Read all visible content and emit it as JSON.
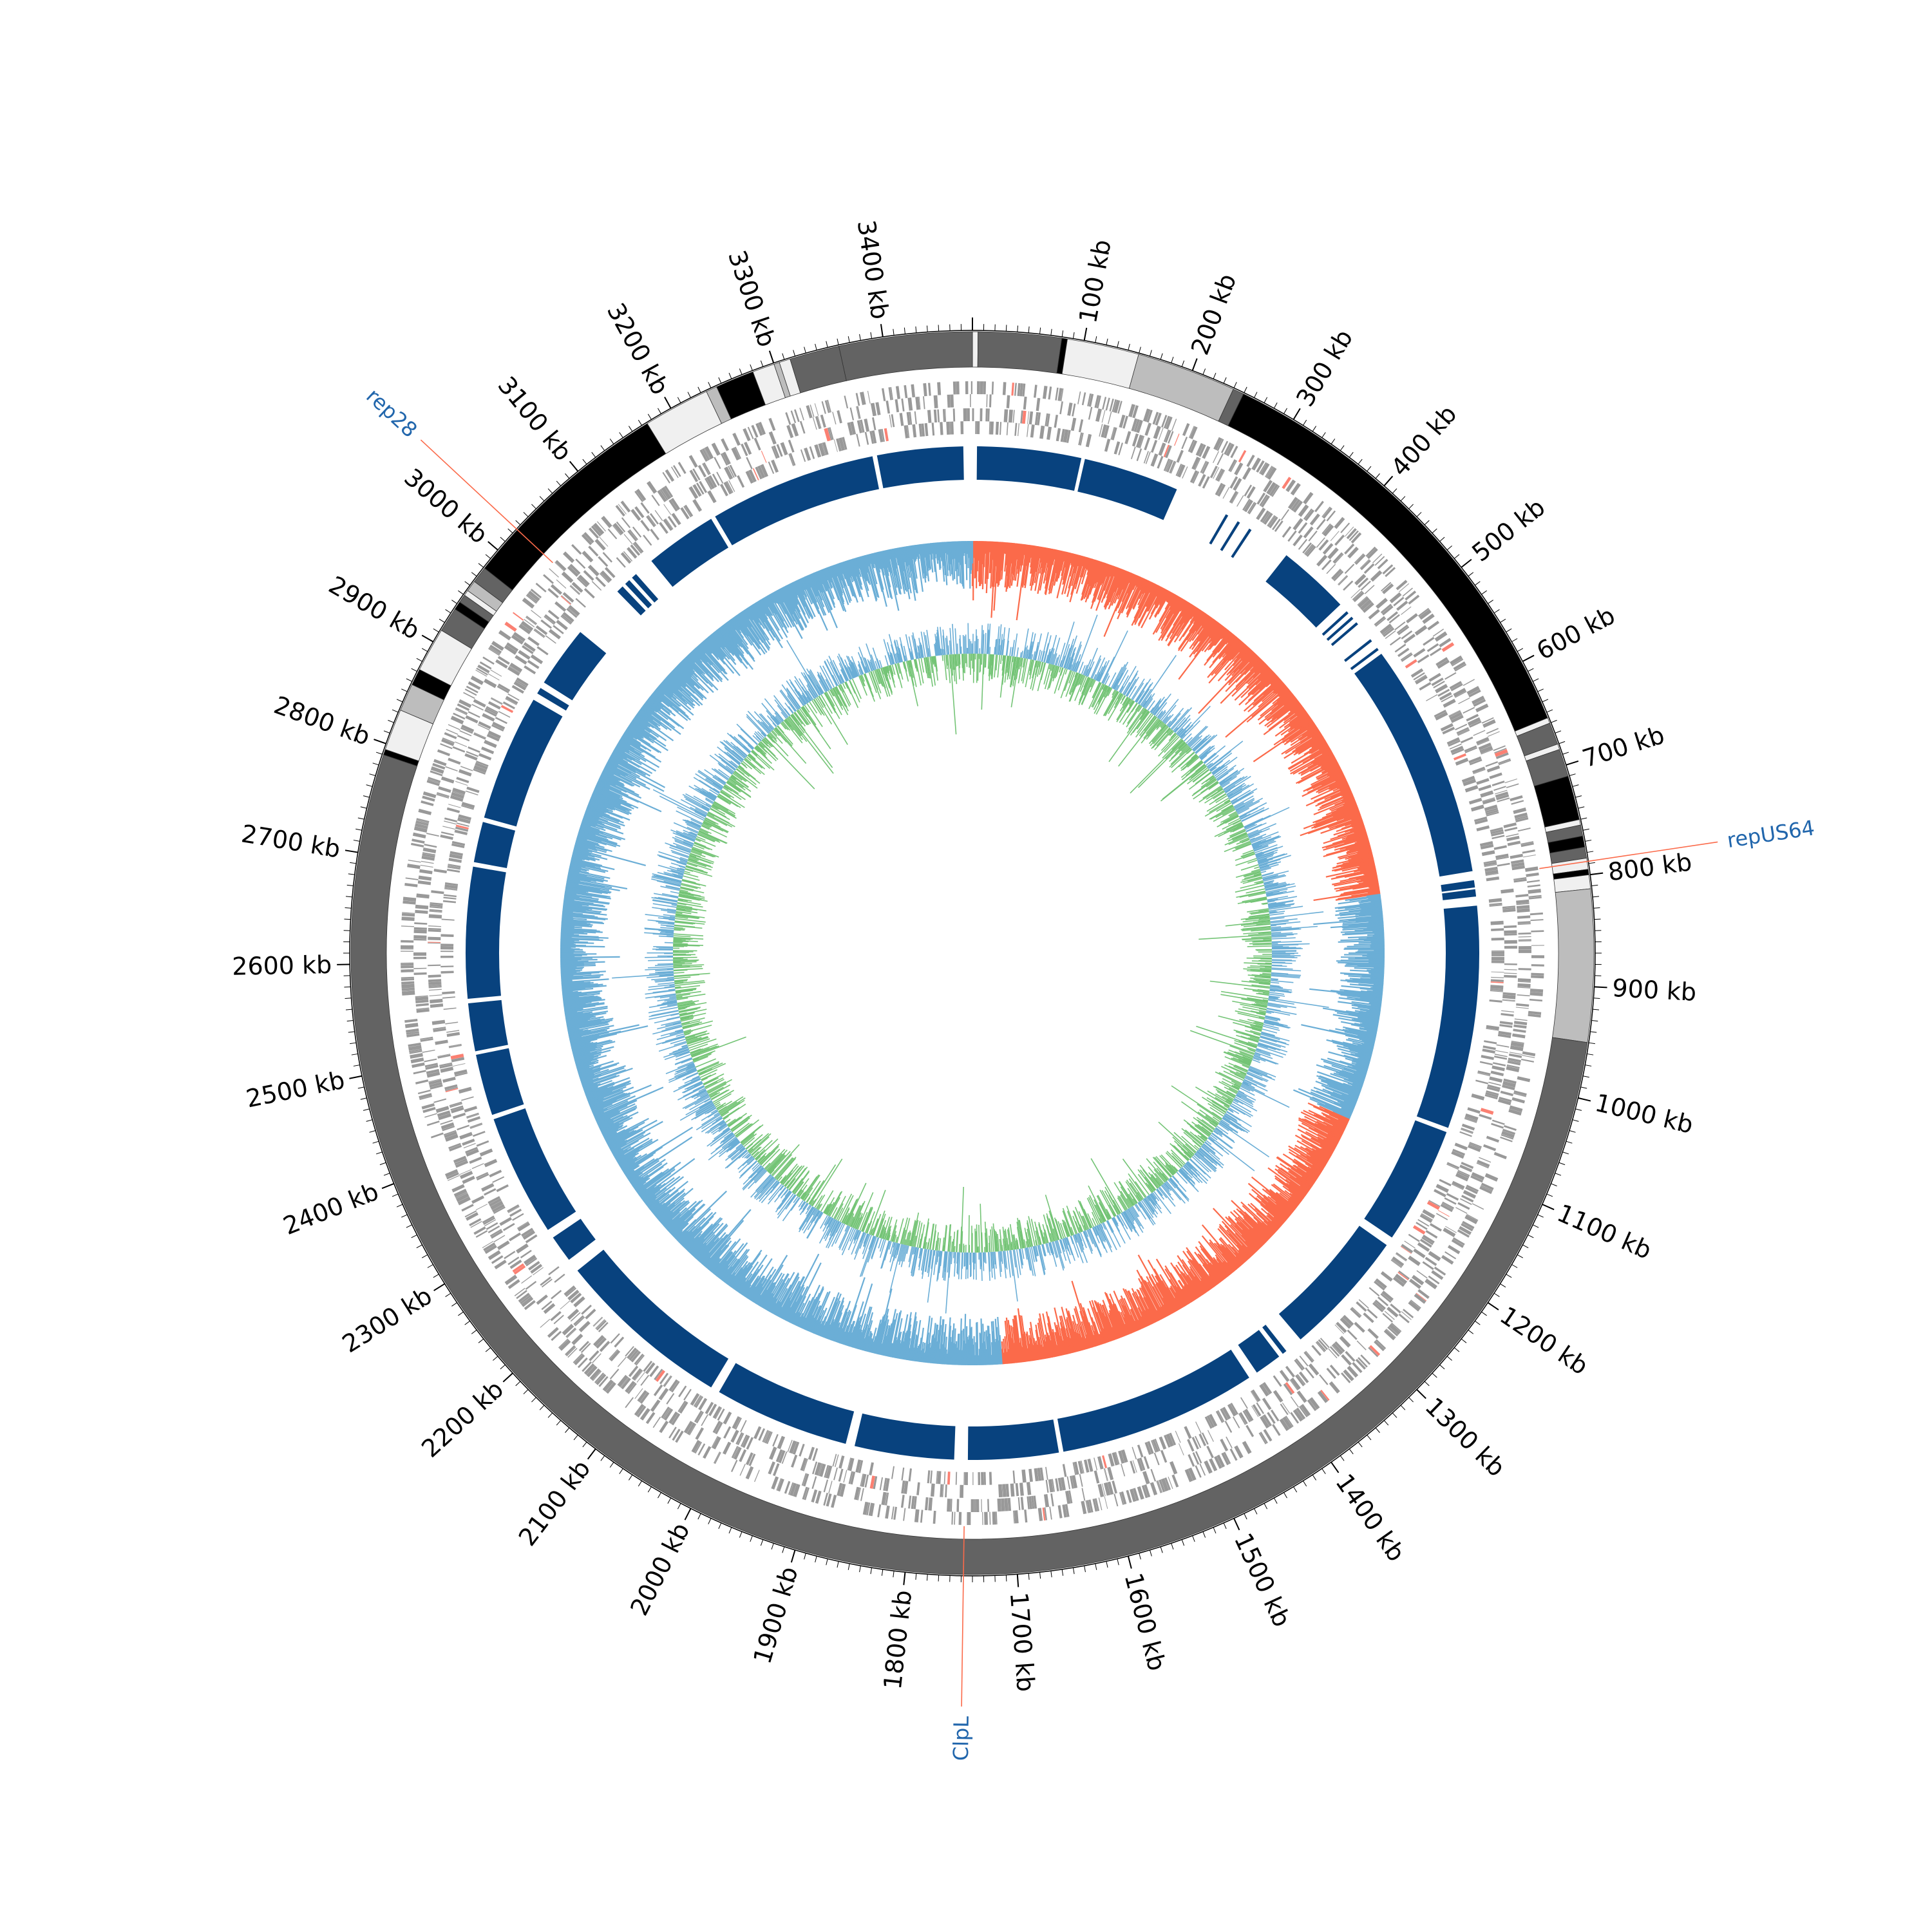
{
  "genome": {
    "length_kb": 3480,
    "tick_unit": "kb",
    "tick_labels": [
      "100 kb",
      "200 kb",
      "300 kb",
      "400 kb",
      "500 kb",
      "600 kb",
      "700 kb",
      "800 kb",
      "900 kb",
      "1000 kb",
      "1100 kb",
      "1200 kb",
      "1300 kb",
      "1400 kb",
      "1500 kb",
      "1600 kb",
      "1700 kb",
      "1800 kb",
      "1900 kb",
      "2000 kb",
      "2100 kb",
      "2200 kb",
      "2300 kb",
      "2400 kb",
      "2500 kb",
      "2600 kb",
      "2700 kb",
      "2800 kb",
      "2900 kb",
      "3000 kb",
      "3100 kb",
      "3200 kb",
      "3300 kb",
      "3400 kb"
    ]
  },
  "segments": [
    {
      "start": 0,
      "end": 10,
      "shade": "#f0f0f0"
    },
    {
      "start": 10,
      "end": 160,
      "shade": "#636363"
    },
    {
      "start": 160,
      "end": 170,
      "shade": "#000000"
    },
    {
      "start": 170,
      "end": 300,
      "shade": "#f0f0f0"
    },
    {
      "start": 300,
      "end": 480,
      "shade": "#bdbdbd"
    },
    {
      "start": 480,
      "end": 500,
      "shade": "#636363"
    },
    {
      "start": 500,
      "end": 1310,
      "shade": "#000000"
    },
    {
      "start": 1310,
      "end": 1320,
      "shade": "#f0f0f0"
    },
    {
      "start": 1320,
      "end": 1360,
      "shade": "#636363"
    },
    {
      "start": 1360,
      "end": 1370,
      "shade": "#f0f0f0"
    },
    {
      "start": 1370,
      "end": 1420,
      "shade": "#636363"
    },
    {
      "start": 1420,
      "end": 1500,
      "shade": "#000000"
    },
    {
      "start": 1500,
      "end": 1510,
      "shade": "#f0f0f0"
    },
    {
      "start": 1510,
      "end": 1530,
      "shade": "#636363"
    },
    {
      "start": 1530,
      "end": 1550,
      "shade": "#000000"
    },
    {
      "start": 1550,
      "end": 1570,
      "shade": "#636363"
    },
    {
      "start": 1570,
      "end": 1590,
      "shade": "#f0f0f0"
    },
    {
      "start": 1590,
      "end": 1600,
      "shade": "#000000"
    },
    {
      "start": 1600,
      "end": 1625,
      "shade": "#f0f0f0"
    },
    {
      "start": 1625,
      "end": 1900,
      "shade": "#bdbdbd"
    },
    {
      "start": 1900,
      "end": 5580,
      "shade": "#636363"
    },
    {
      "start": 5580,
      "end": 5590,
      "shade": "#000000"
    },
    {
      "start": 5590,
      "end": 5665,
      "shade": "#f0f0f0"
    },
    {
      "start": 5665,
      "end": 5715,
      "shade": "#bdbdbd"
    },
    {
      "start": 5715,
      "end": 5745,
      "shade": "#000000"
    },
    {
      "start": 5745,
      "end": 5825,
      "shade": "#f0f0f0"
    },
    {
      "start": 5825,
      "end": 5870,
      "shade": "#636363"
    },
    {
      "start": 5870,
      "end": 5885,
      "shade": "#000000"
    },
    {
      "start": 5885,
      "end": 5900,
      "shade": "#636363"
    },
    {
      "start": 5900,
      "end": 5910,
      "shade": "#f0f0f0"
    },
    {
      "start": 5910,
      "end": 5930,
      "shade": "#bdbdbd"
    },
    {
      "start": 5930,
      "end": 5960,
      "shade": "#636363"
    },
    {
      "start": 5960,
      "end": 6350,
      "shade": "#000000"
    },
    {
      "start": 6350,
      "end": 6470,
      "shade": "#f0f0f0"
    },
    {
      "start": 6470,
      "end": 6490,
      "shade": "#bdbdbd"
    },
    {
      "start": 6490,
      "end": 6560,
      "shade": "#000000"
    },
    {
      "start": 6560,
      "end": 6600,
      "shade": "#f0f0f0"
    },
    {
      "start": 6600,
      "end": 6610,
      "shade": "#bdbdbd"
    },
    {
      "start": 6610,
      "end": 6630,
      "shade": "#f0f0f0"
    },
    {
      "start": 6630,
      "end": 6720,
      "shade": "#636363"
    },
    {
      "start": 6720,
      "end": 6960,
      "shade": "#636363"
    }
  ],
  "markers": [
    {
      "label": "repUS64",
      "position_kb": 788,
      "color": "#2166ac"
    },
    {
      "label": "ClpL",
      "position_kb": 1748,
      "color": "#2166ac"
    },
    {
      "label": "rep28",
      "position_kb": 3025,
      "color": "#2166ac"
    }
  ],
  "colors": {
    "genes": "#999999",
    "genes_highlight": "#fb8072",
    "blocks": "#08427e",
    "gc_skew_positive": "#fb6a4a",
    "gc_skew_negative": "#6baed6",
    "gc_content_high": "#6baed6",
    "gc_content_low": "#74c476",
    "marker_line": "#fb6a4a"
  }
}
